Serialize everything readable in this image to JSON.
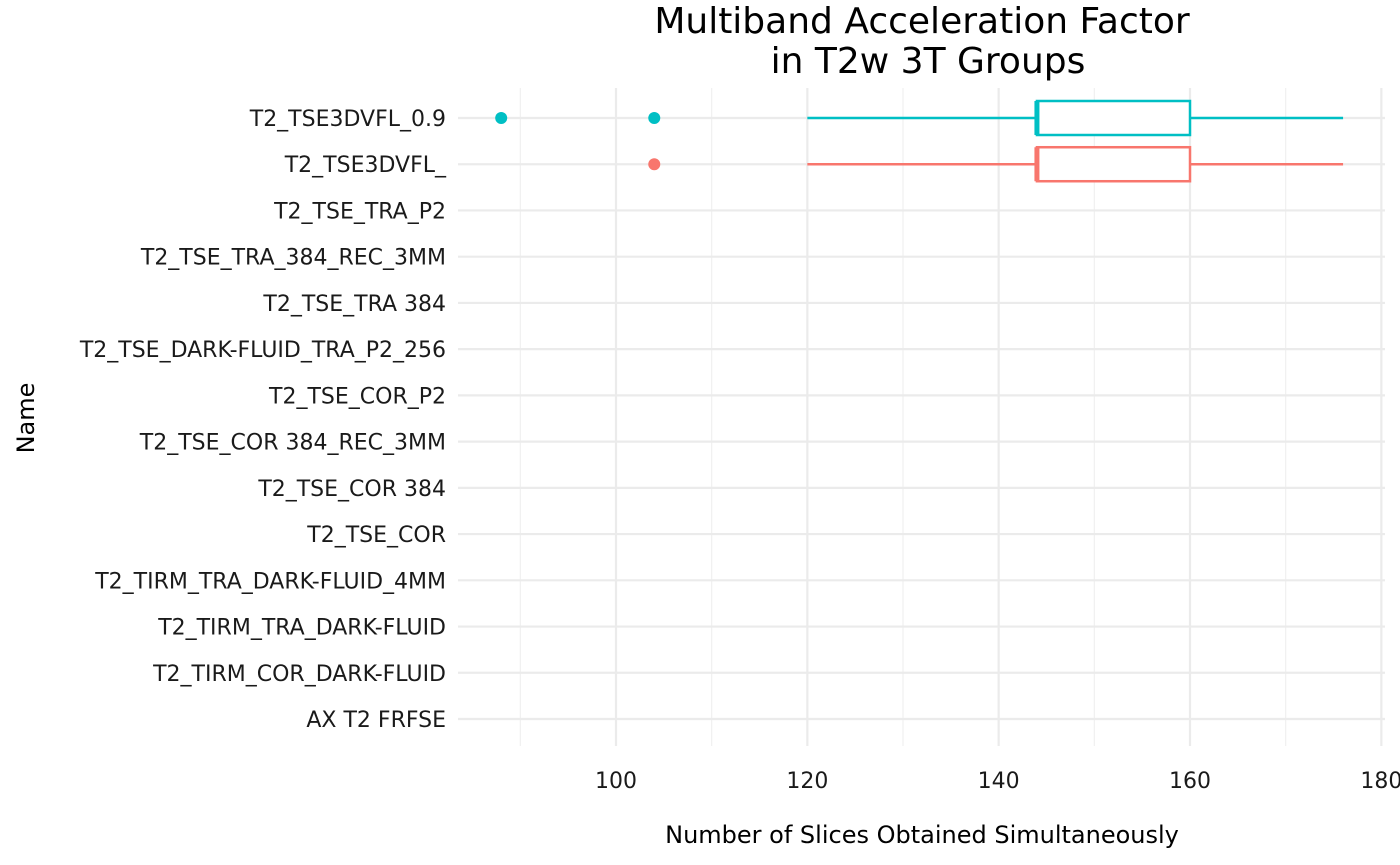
{
  "chart_data": {
    "type": "boxplot",
    "title_lines": [
      "Multiband Acceleration Factor",
      "in T2w 3T Groups"
    ],
    "xlabel": "Number of Slices Obtained Simultaneously",
    "ylabel": "Name",
    "xlim": [
      84,
      181
    ],
    "x_ticks": [
      100,
      120,
      140,
      160,
      180
    ],
    "grid": true,
    "categories": [
      "AX T2 FRFSE",
      "T2_TIRM_COR_DARK-FLUID",
      "T2_TIRM_TRA_DARK-FLUID",
      "T2_TIRM_TRA_DARK-FLUID_4MM",
      "T2_TSE_COR",
      "T2_TSE_COR 384",
      "T2_TSE_COR 384_REC_3MM",
      "T2_TSE_COR_P2",
      "T2_TSE_DARK-FLUID_TRA_P2_256",
      "T2_TSE_TRA 384",
      "T2_TSE_TRA_384_REC_3MM",
      "T2_TSE_TRA_P2",
      "T2_TSE3DVFL_",
      "T2_TSE3DVFL_0.9"
    ],
    "boxes": [
      {
        "category": "T2_TSE3DVFL_",
        "color": "#F8766D",
        "whisker_low": 120,
        "q1": 144,
        "median": 144,
        "q3": 160,
        "whisker_high": 176,
        "outliers": [
          104
        ]
      },
      {
        "category": "T2_TSE3DVFL_0.9",
        "color": "#00BFC4",
        "whisker_low": 120,
        "q1": 144,
        "median": 144,
        "q3": 160,
        "whisker_high": 176,
        "outliers": [
          88,
          104
        ]
      }
    ]
  }
}
